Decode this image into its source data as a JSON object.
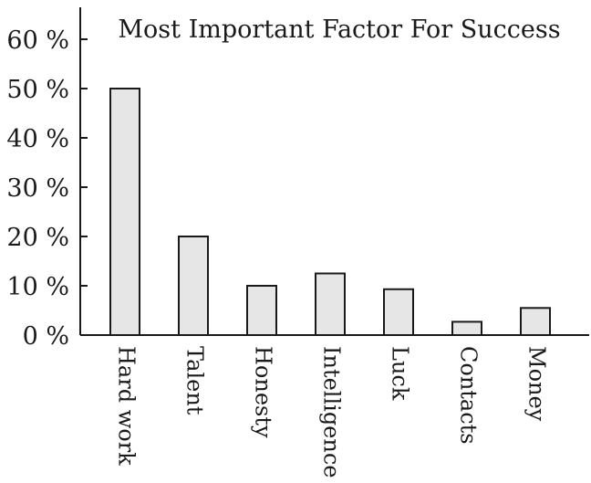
{
  "chart_data": {
    "type": "bar",
    "title": "Most Important Factor For Success",
    "xlabel": "",
    "ylabel": "",
    "categories": [
      "Hard work",
      "Talent",
      "Honesty",
      "Intelligence",
      "Luck",
      "Contacts",
      "Money"
    ],
    "values": [
      50,
      20,
      10,
      12.5,
      9.3,
      2.7,
      5.5
    ],
    "ylim": [
      0,
      60
    ],
    "yticks": [
      0,
      10,
      20,
      30,
      40,
      50,
      60
    ],
    "ytick_labels": [
      "0 %",
      "10 %",
      "20 %",
      "30 %",
      "40 %",
      "50 %",
      "60 %"
    ],
    "grid": false,
    "bar_fill": "#e6e6e6",
    "bar_stroke": "#1a1a1a",
    "category_label_orientation": "rotated-vertical"
  }
}
